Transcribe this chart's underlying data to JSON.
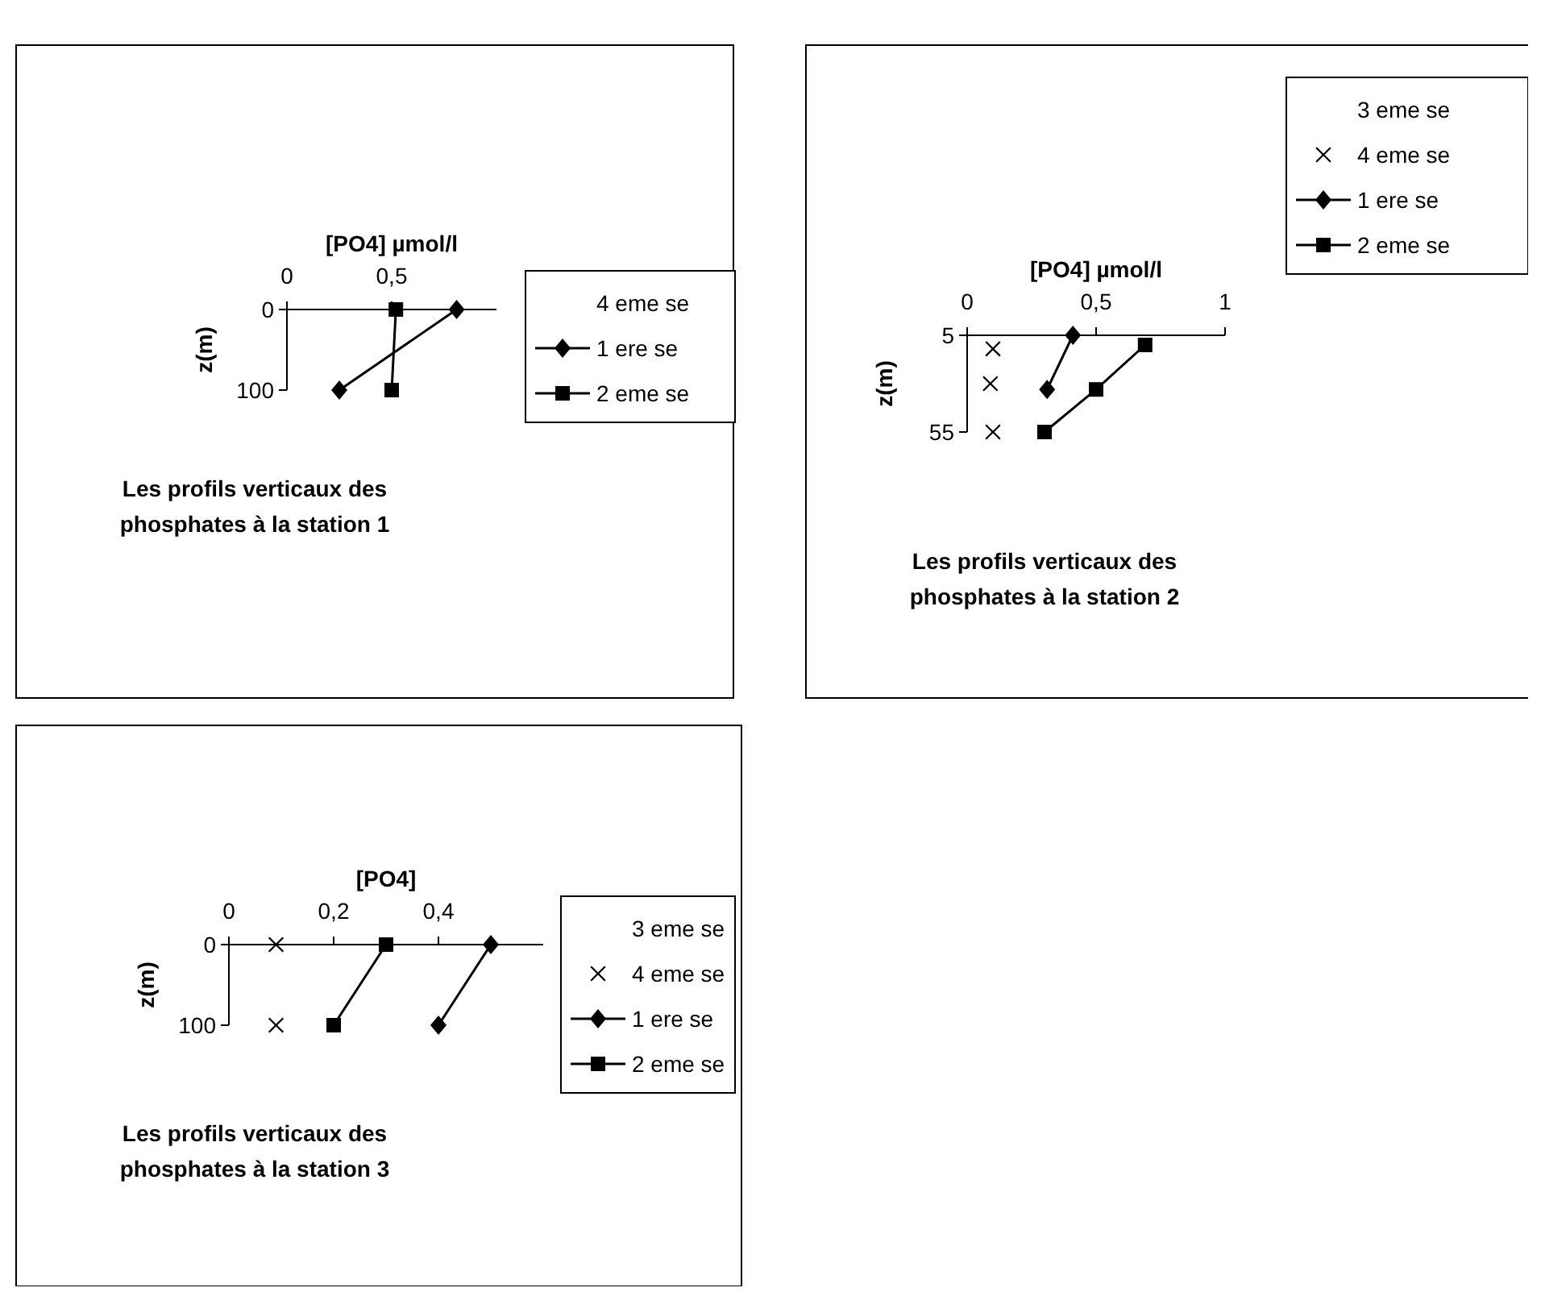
{
  "chart_data": [
    {
      "type": "line",
      "title": "Les profils verticaux des phosphates à la station 1",
      "xlabel": "[PO4] µmol/l",
      "ylabel": "z(m)",
      "xlim": [
        0,
        1
      ],
      "xticks": [
        {
          "value": 0,
          "label": "0"
        },
        {
          "value": 0.5,
          "label": "0,5"
        }
      ],
      "ylim": [
        100,
        0
      ],
      "yticks": [
        {
          "value": 0,
          "label": "0"
        },
        100
      ],
      "legend": "right",
      "grid": false,
      "series": [
        {
          "name": "4 eme se",
          "type": "scatter",
          "color": "#000000",
          "marker": "none"
        },
        {
          "name": "1 ere se",
          "color": "#000000",
          "x": [
            0.81,
            0.25
          ],
          "values": [
            0,
            100
          ],
          "marker": "diamond",
          "line_style": "solid"
        },
        {
          "name": "2 eme se",
          "color": "#000000",
          "x": [
            0.52,
            0.5
          ],
          "values": [
            0,
            100
          ],
          "marker": "square",
          "line_style": "solid"
        }
      ]
    },
    {
      "type": "line",
      "title": "Les profils verticaux des phosphates à la station 2",
      "xlabel": "[PO4] µmol/l",
      "ylabel": "z(m)",
      "xlim": [
        0,
        1
      ],
      "xticks": [
        {
          "value": 0,
          "label": "0"
        },
        {
          "value": 0.5,
          "label": "0,5"
        },
        1
      ],
      "ylim": [
        55,
        5
      ],
      "yticks": [
        5,
        55
      ],
      "legend": "right",
      "grid": false,
      "series": [
        {
          "name": "3 eme se",
          "type": "scatter",
          "color": "#000000",
          "marker": "none"
        },
        {
          "name": "4 eme se",
          "type": "scatter",
          "color": "#000000",
          "x": [
            0.1,
            0.09,
            0.1
          ],
          "values": [
            12,
            30,
            55
          ],
          "marker": "cross"
        },
        {
          "name": "1 ere se",
          "color": "#000000",
          "x": [
            0.41,
            0.31
          ],
          "values": [
            5,
            33
          ],
          "marker": "diamond",
          "line_style": "solid"
        },
        {
          "name": "2 eme se",
          "color": "#000000",
          "x": [
            0.69,
            0.5,
            0.3
          ],
          "values": [
            10,
            33,
            55
          ],
          "marker": "square",
          "line_style": "solid"
        }
      ]
    },
    {
      "type": "line",
      "title": "Les profils verticaux des phosphates à la station 3",
      "xlabel": "[PO4]",
      "ylabel": "z(m)",
      "xlim": [
        0,
        0.6
      ],
      "xticks": [
        {
          "value": 0,
          "label": "0"
        },
        {
          "value": 0.2,
          "label": "0,2"
        },
        {
          "value": 0.4,
          "label": "0,4"
        }
      ],
      "ylim": [
        100,
        0
      ],
      "yticks": [
        {
          "value": 0,
          "label": "0"
        },
        100
      ],
      "legend": "right",
      "grid": false,
      "series": [
        {
          "name": "3 eme se",
          "type": "scatter",
          "color": "#000000",
          "marker": "none"
        },
        {
          "name": "4 eme se",
          "type": "scatter",
          "color": "#000000",
          "x": [
            0.09,
            0.09
          ],
          "values": [
            0,
            100
          ],
          "marker": "cross"
        },
        {
          "name": "1 ere se",
          "color": "#000000",
          "x": [
            0.5,
            0.4
          ],
          "values": [
            0,
            100
          ],
          "marker": "diamond",
          "line_style": "solid"
        },
        {
          "name": "2 eme se",
          "color": "#000000",
          "x": [
            0.3,
            0.2
          ],
          "values": [
            0,
            100
          ],
          "marker": "square",
          "line_style": "solid"
        }
      ]
    }
  ]
}
